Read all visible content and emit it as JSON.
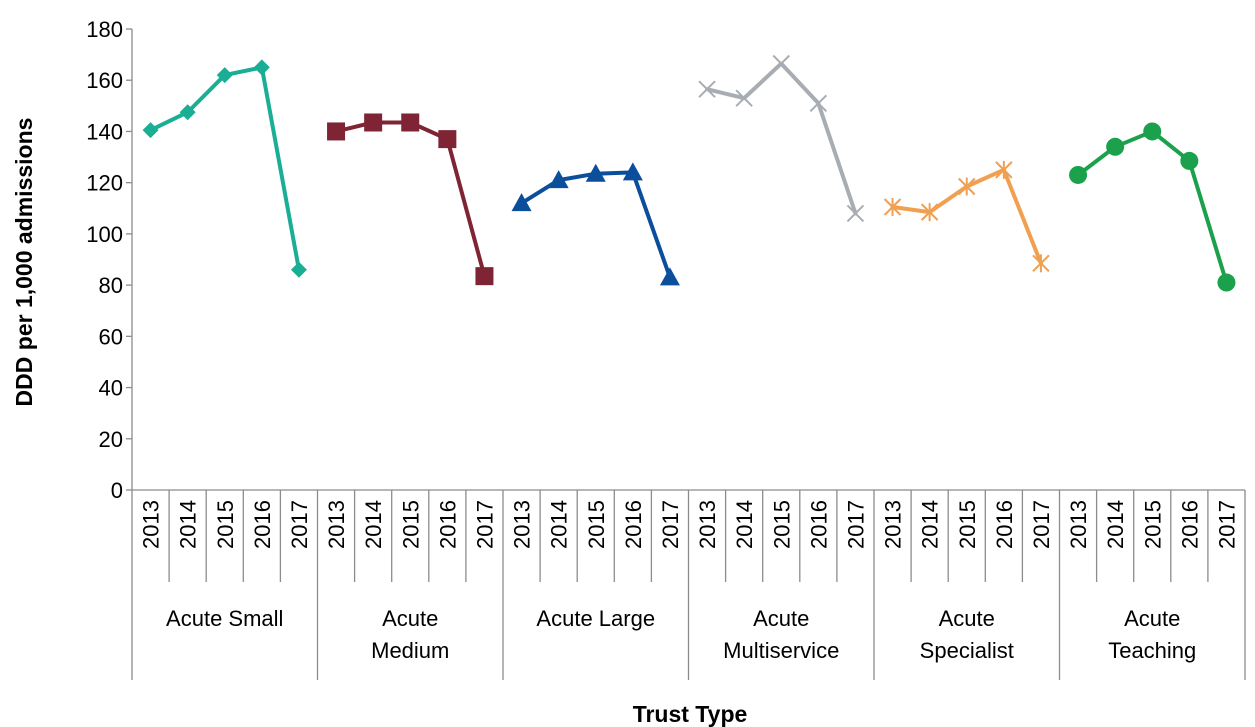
{
  "chart_data": {
    "type": "line",
    "xlabel": "Trust Type",
    "ylabel": "DDD per 1,000 admissions",
    "ylim": [
      0,
      180
    ],
    "yticks": [
      0,
      20,
      40,
      60,
      80,
      100,
      120,
      140,
      160,
      180
    ],
    "years": [
      "2013",
      "2014",
      "2015",
      "2016",
      "2017"
    ],
    "grid": false,
    "legend": "none",
    "series": [
      {
        "group_lines": [
          "Acute Small"
        ],
        "color": "#1AAE95",
        "marker": "diamond",
        "values": [
          140.5,
          147.5,
          162,
          165,
          86
        ]
      },
      {
        "group_lines": [
          "Acute",
          "Medium"
        ],
        "color": "#7F2435",
        "marker": "square",
        "values": [
          140,
          143.5,
          143.5,
          137,
          83.5
        ]
      },
      {
        "group_lines": [
          "Acute Large"
        ],
        "color": "#0A4E9C",
        "marker": "triangle",
        "values": [
          112,
          121,
          123.5,
          124,
          83
        ]
      },
      {
        "group_lines": [
          "Acute",
          "Multiservice"
        ],
        "color": "#A7ADB3",
        "marker": "x",
        "values": [
          156.5,
          153,
          166.5,
          151,
          108
        ]
      },
      {
        "group_lines": [
          "Acute",
          "Specialist"
        ],
        "color": "#F0A050",
        "marker": "star",
        "values": [
          110.5,
          108.5,
          118.5,
          125,
          88.5
        ]
      },
      {
        "group_lines": [
          "Acute",
          "Teaching"
        ],
        "color": "#1BA14B",
        "marker": "circle",
        "values": [
          123,
          134,
          140,
          128.5,
          81
        ]
      }
    ]
  }
}
